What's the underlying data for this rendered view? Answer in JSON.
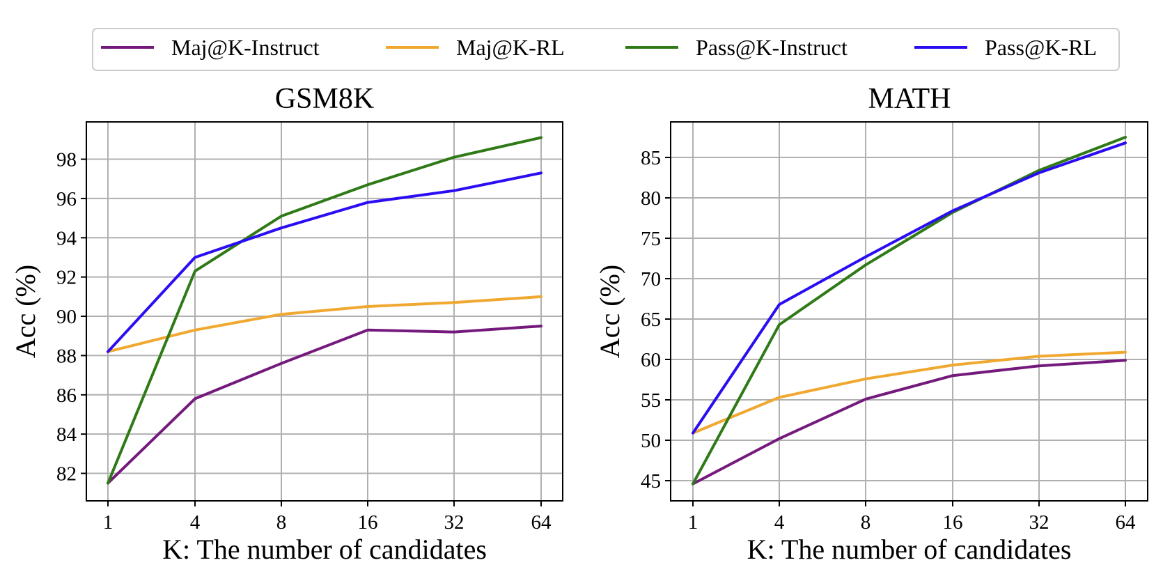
{
  "legend": {
    "items": [
      {
        "label": "Maj@K-Instruct",
        "color": "#751a7d"
      },
      {
        "label": "Maj@K-RL",
        "color": "#f0a830"
      },
      {
        "label": "Pass@K-Instruct",
        "color": "#2f7a17"
      },
      {
        "label": "Pass@K-RL",
        "color": "#2a0df2"
      }
    ],
    "placement": "top-center"
  },
  "chart_data": [
    {
      "type": "line",
      "title": "GSM8K",
      "xlabel": "K: The number of candidates",
      "ylabel": "Acc (%)",
      "x": [
        1,
        4,
        8,
        16,
        32,
        64
      ],
      "x_tick_labels": [
        "1",
        "4",
        "8",
        "16",
        "32",
        "64"
      ],
      "x_scale": "categorical",
      "ylim": [
        80.6,
        99.9
      ],
      "y_ticks": [
        82,
        84,
        86,
        88,
        90,
        92,
        94,
        96,
        98
      ],
      "grid": true,
      "series": [
        {
          "name": "Maj@K-Instruct",
          "color": "#751a7d",
          "values": [
            81.5,
            85.8,
            87.6,
            89.3,
            89.2,
            89.5
          ]
        },
        {
          "name": "Maj@K-RL",
          "color": "#f0a830",
          "values": [
            88.2,
            89.3,
            90.1,
            90.5,
            90.7,
            91.0
          ]
        },
        {
          "name": "Pass@K-Instruct",
          "color": "#2f7a17",
          "values": [
            81.5,
            92.3,
            95.1,
            96.7,
            98.1,
            99.1
          ]
        },
        {
          "name": "Pass@K-RL",
          "color": "#2a0df2",
          "values": [
            88.2,
            93.0,
            94.5,
            95.8,
            96.4,
            97.3
          ]
        }
      ]
    },
    {
      "type": "line",
      "title": "MATH",
      "xlabel": "K: The number of candidates",
      "ylabel": "Acc (%)",
      "x": [
        1,
        4,
        8,
        16,
        32,
        64
      ],
      "x_tick_labels": [
        "1",
        "4",
        "8",
        "16",
        "32",
        "64"
      ],
      "x_scale": "categorical",
      "ylim": [
        42.5,
        89.4
      ],
      "y_ticks": [
        45,
        50,
        55,
        60,
        65,
        70,
        75,
        80,
        85
      ],
      "grid": true,
      "series": [
        {
          "name": "Maj@K-Instruct",
          "color": "#751a7d",
          "values": [
            44.6,
            50.2,
            55.1,
            58.0,
            59.2,
            59.9
          ]
        },
        {
          "name": "Maj@K-RL",
          "color": "#f0a830",
          "values": [
            50.9,
            55.3,
            57.6,
            59.3,
            60.4,
            60.9
          ]
        },
        {
          "name": "Pass@K-Instruct",
          "color": "#2f7a17",
          "values": [
            44.6,
            64.3,
            71.7,
            78.2,
            83.4,
            87.5
          ]
        },
        {
          "name": "Pass@K-RL",
          "color": "#2a0df2",
          "values": [
            50.9,
            66.8,
            72.7,
            78.4,
            83.1,
            86.8
          ]
        }
      ]
    }
  ]
}
